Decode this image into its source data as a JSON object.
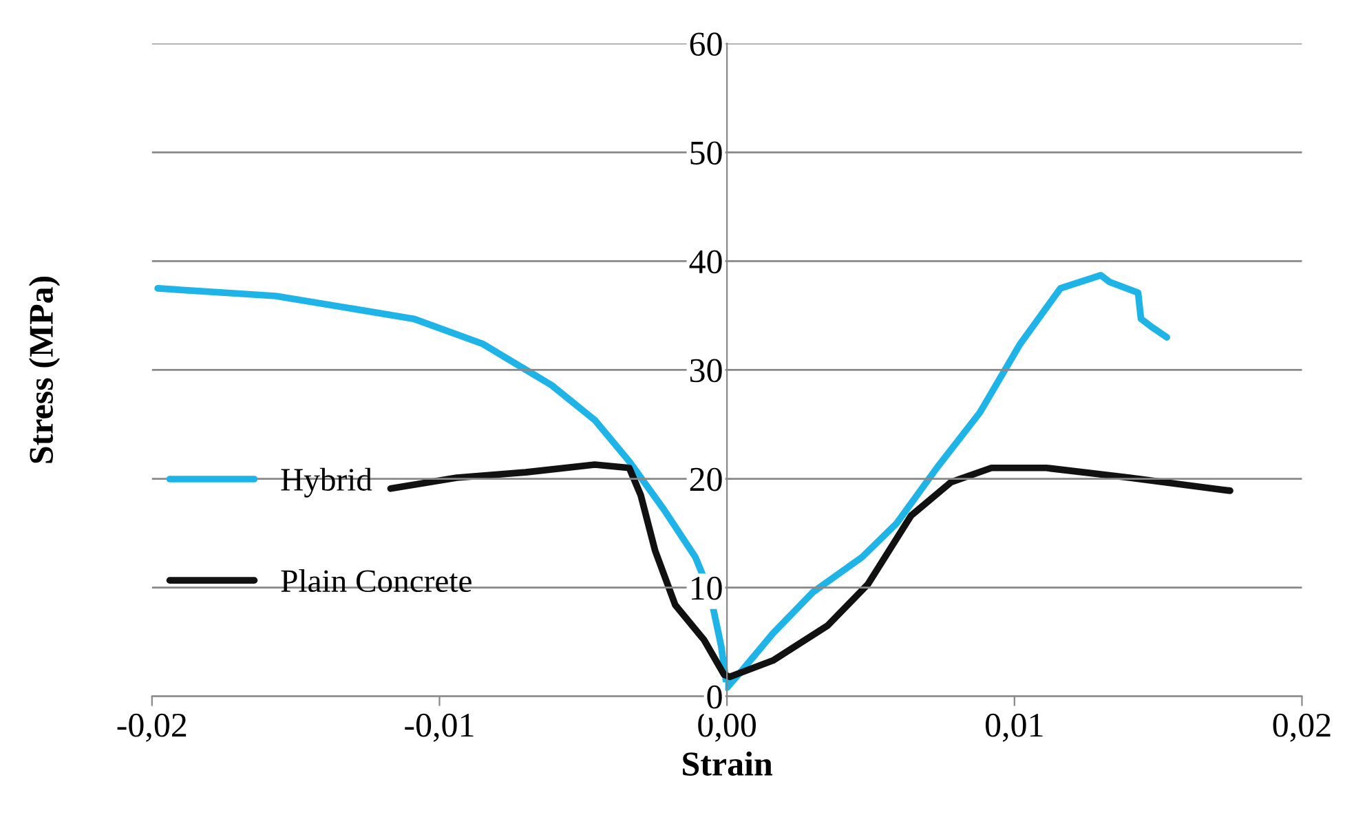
{
  "chart_data": {
    "type": "line",
    "xlabel": "Strain",
    "ylabel": "Stress (MPa)",
    "xlim": [
      -0.02,
      0.02
    ],
    "ylim": [
      0,
      60
    ],
    "xticks": [
      {
        "value": -0.02,
        "label": "-0,02"
      },
      {
        "value": -0.01,
        "label": "-0,01"
      },
      {
        "value": 0,
        "label": "0,00"
      },
      {
        "value": 0.01,
        "label": "0,01"
      },
      {
        "value": 0.02,
        "label": "0,02"
      }
    ],
    "yticks": [
      0,
      10,
      20,
      30,
      40,
      50,
      60
    ],
    "grid": "y",
    "legend": "left",
    "marker": "none",
    "line_style": "solid",
    "series": [
      {
        "name": "Hybrid",
        "color": "#1eb4e8",
        "x": [
          -0.0198,
          -0.0157,
          -0.0109,
          -0.0085,
          -0.0061,
          -0.0046,
          -0.0034,
          -0.0022,
          -0.0011,
          -0.0006,
          -0.0002,
          0,
          0.0004,
          0.0016,
          0.003,
          0.0047,
          0.0059,
          0.0073,
          0.0088,
          0.0102,
          0.0116,
          0.013,
          0.0133,
          0.0143,
          0.0144,
          0.0148,
          0.0153
        ],
        "values": [
          37.5,
          36.8,
          34.7,
          32.4,
          28.6,
          25.4,
          21.6,
          17.2,
          12.8,
          9.6,
          4.6,
          0.8,
          2.0,
          5.8,
          9.6,
          12.8,
          15.9,
          21.0,
          26.1,
          32.4,
          37.5,
          38.7,
          38.1,
          37.1,
          34.7,
          33.9,
          33.0
        ]
      },
      {
        "name": "Plain Concrete",
        "color": "#111111",
        "x": [
          -0.0117,
          -0.0094,
          -0.007,
          -0.0046,
          -0.0034,
          -0.003,
          -0.0025,
          -0.0018,
          -0.0008,
          -0.0001,
          0.0001,
          0.0016,
          0.0035,
          0.0049,
          0.0064,
          0.0078,
          0.0092,
          0.0111,
          0.014,
          0.0169,
          0.0175
        ],
        "values": [
          19.1,
          20.1,
          20.6,
          21.3,
          21.0,
          18.5,
          13.4,
          8.4,
          5.2,
          2.0,
          1.8,
          3.3,
          6.5,
          10.3,
          16.6,
          19.7,
          21.0,
          21.0,
          20.1,
          19.1,
          18.9
        ]
      }
    ]
  }
}
